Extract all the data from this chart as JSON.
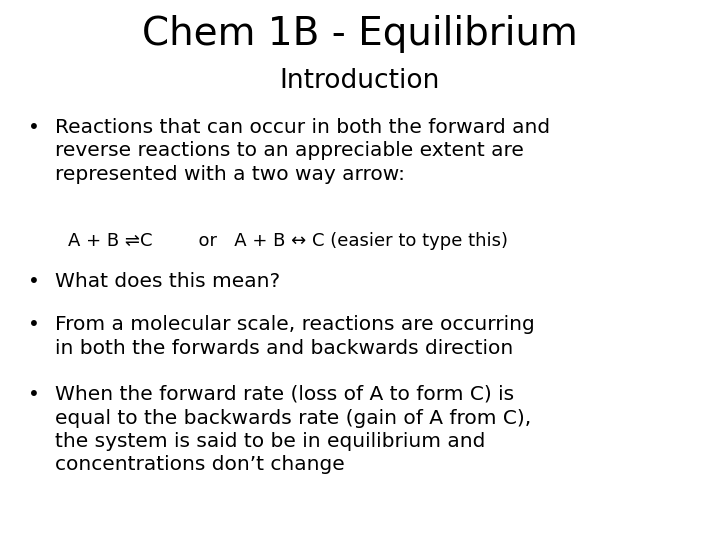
{
  "title_line1": "Chem 1B - Equilibrium",
  "title_line2": "Introduction",
  "title_fontsize": 28,
  "subtitle_fontsize": 19,
  "body_fontsize": 14.5,
  "arrow_line_fontsize": 13,
  "background_color": "#ffffff",
  "text_color": "#000000",
  "bullet1": "Reactions that can occur in both the forward and\nreverse reactions to an appreciable extent are\nrepresented with a two way arrow:",
  "bullet2": "What does this mean?",
  "bullet3": "From a molecular scale, reactions are occurring\nin both the forwards and backwards direction",
  "bullet4": "When the forward rate (loss of A to form C) is\nequal to the backwards rate (gain of A from C),\nthe system is said to be in equilibrium and\nconcentrations don’t change",
  "arrow_line": "A + B ⇌C        or   A + B ↔ C (easier to type this)",
  "bullet_char": "•",
  "font": "DejaVu Sans"
}
